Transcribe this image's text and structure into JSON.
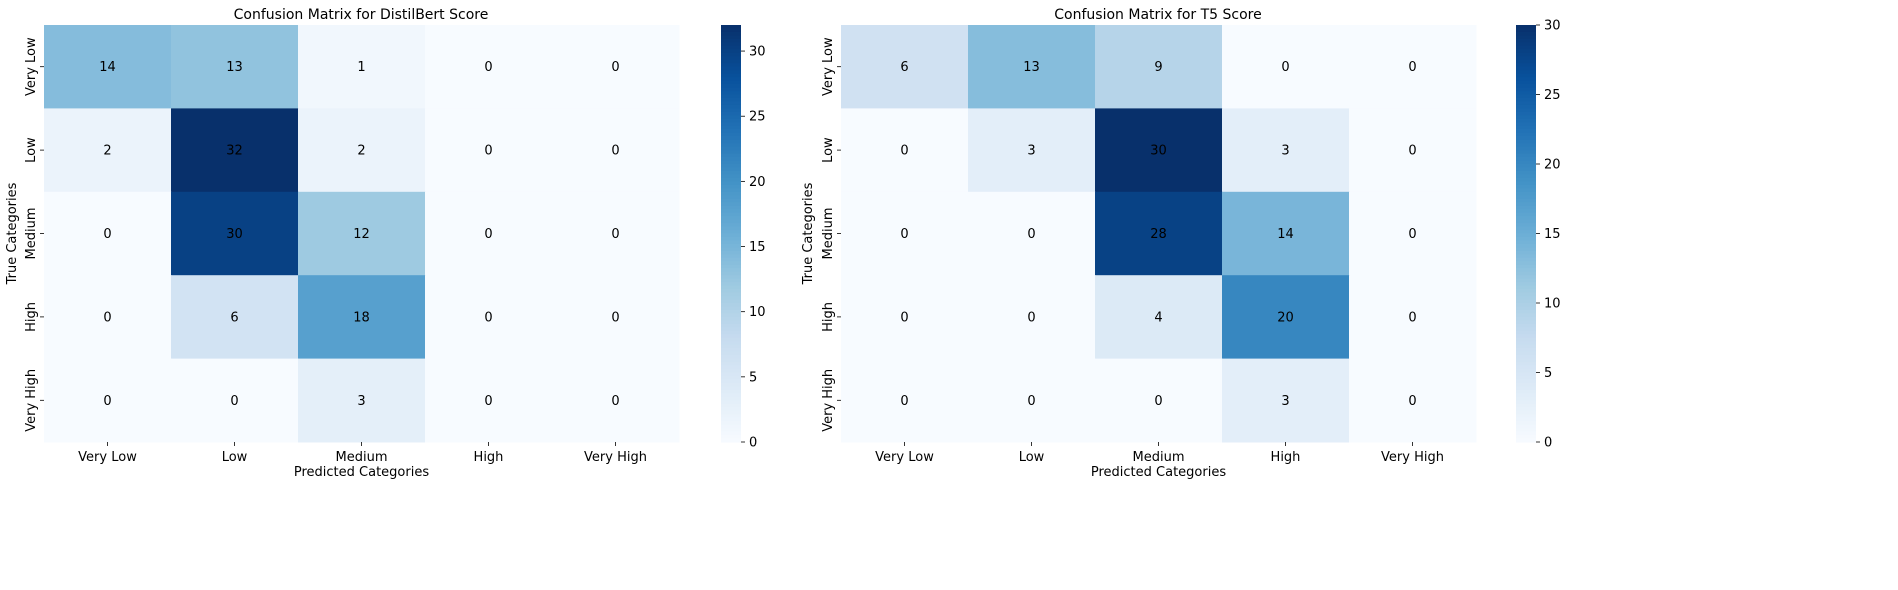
{
  "chart_data": [
    {
      "type": "heatmap",
      "title": "Confusion Matrix for DistilBert Score",
      "xlabel": "Predicted Categories",
      "ylabel": "True Categories",
      "x_categories": [
        "Very Low",
        "Low",
        "Medium",
        "High",
        "Very High"
      ],
      "y_categories": [
        "Very Low",
        "Low",
        "Medium",
        "High",
        "Very High"
      ],
      "values": [
        [
          14,
          13,
          1,
          0,
          0
        ],
        [
          2,
          32,
          2,
          0,
          0
        ],
        [
          0,
          30,
          12,
          0,
          0
        ],
        [
          0,
          6,
          18,
          0,
          0
        ],
        [
          0,
          0,
          3,
          0,
          0
        ]
      ],
      "colormap": "Blues",
      "colorbar": {
        "min": 0,
        "max": 32,
        "ticks": [
          0,
          5,
          10,
          15,
          20,
          25,
          30
        ]
      }
    },
    {
      "type": "heatmap",
      "title": "Confusion Matrix for T5 Score",
      "xlabel": "Predicted Categories",
      "ylabel": "True Categories",
      "x_categories": [
        "Very Low",
        "Low",
        "Medium",
        "High",
        "Very High"
      ],
      "y_categories": [
        "Very Low",
        "Low",
        "Medium",
        "High",
        "Very High"
      ],
      "values": [
        [
          6,
          13,
          9,
          0,
          0
        ],
        [
          0,
          3,
          30,
          3,
          0
        ],
        [
          0,
          0,
          28,
          14,
          0
        ],
        [
          0,
          0,
          4,
          20,
          0
        ],
        [
          0,
          0,
          0,
          3,
          0
        ]
      ],
      "colormap": "Blues",
      "colorbar": {
        "min": 0,
        "max": 30,
        "ticks": [
          0,
          5,
          10,
          15,
          20,
          25,
          30
        ]
      }
    }
  ]
}
